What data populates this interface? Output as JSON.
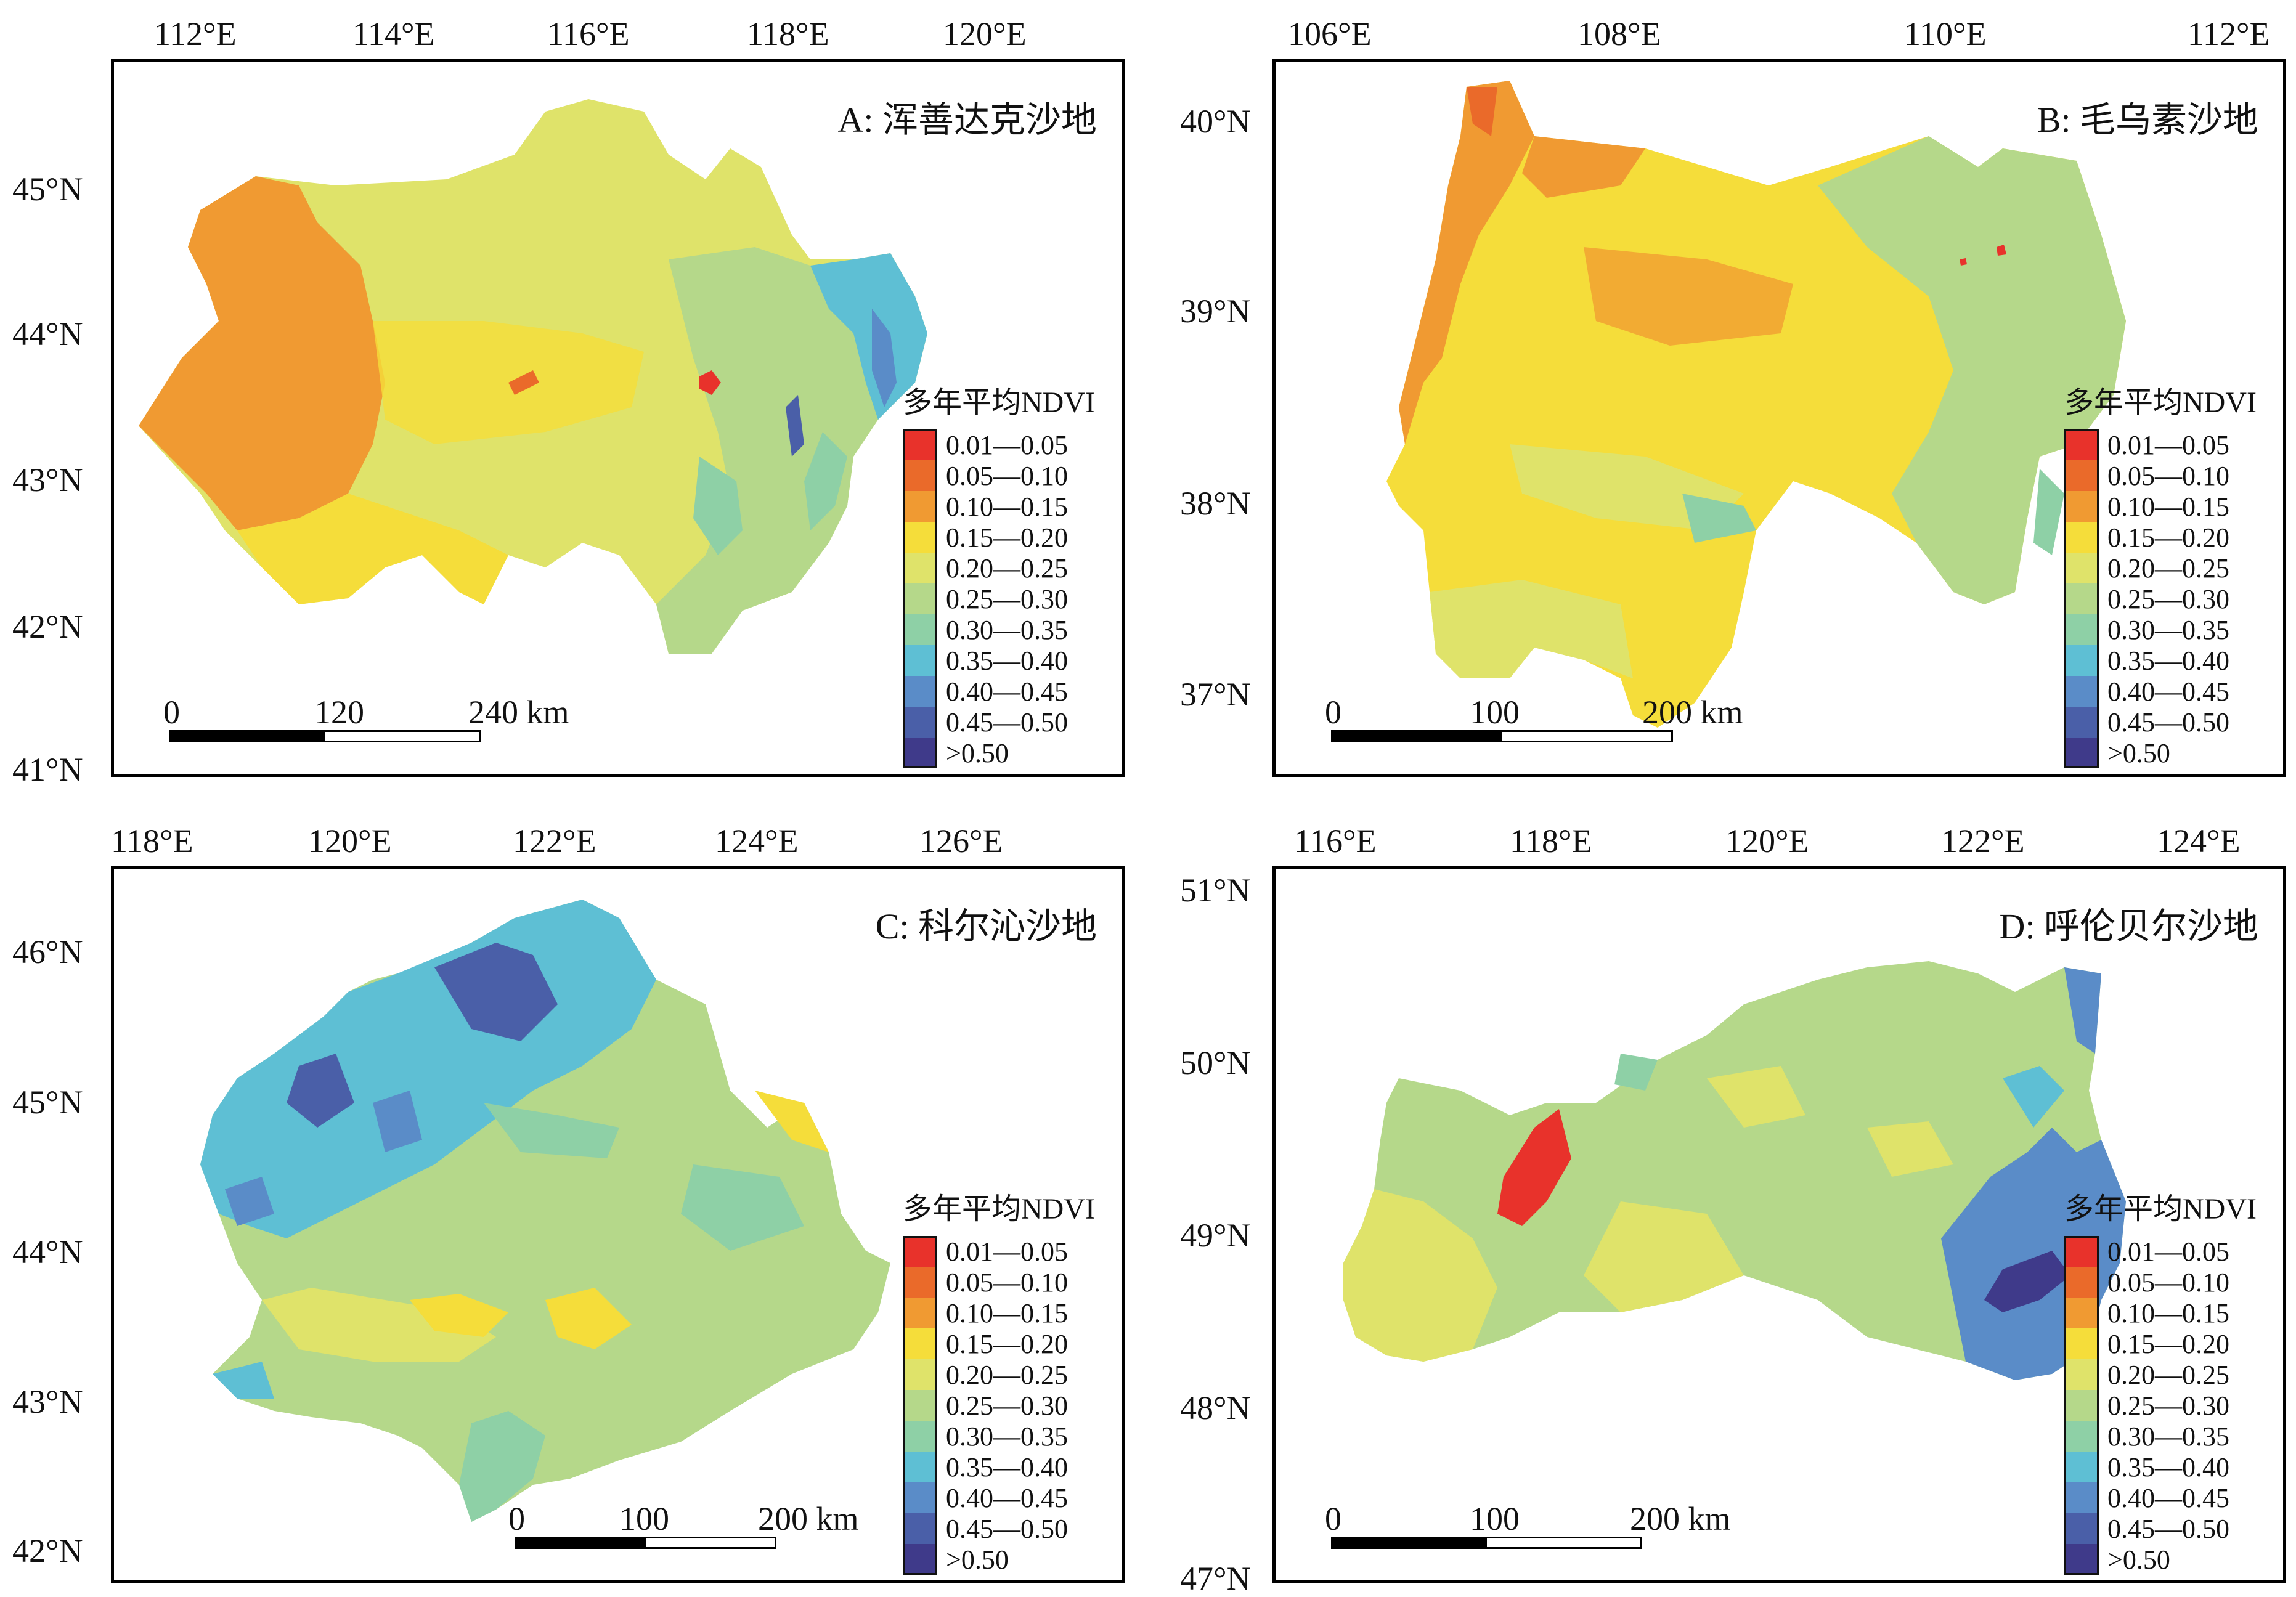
{
  "legend_title": "多年平均NDVI",
  "legend_classes": [
    {
      "label": "0.01—0.05",
      "color": "#e8322b"
    },
    {
      "label": "0.05—0.10",
      "color": "#ea6a2a"
    },
    {
      "label": "0.10—0.15",
      "color": "#f09a32"
    },
    {
      "label": "0.15—0.20",
      "color": "#f5dd3a"
    },
    {
      "label": "0.20—0.25",
      "color": "#dfe36a"
    },
    {
      "label": "0.25—0.30",
      "color": "#b5d88a"
    },
    {
      "label": "0.30—0.35",
      "color": "#8ed0a6"
    },
    {
      "label": "0.35—0.40",
      "color": "#5ebfd4"
    },
    {
      "label": "0.40—0.45",
      "color": "#5a8cc8"
    },
    {
      "label": "0.45—0.50",
      "color": "#4a5fa8"
    },
    {
      "label": ">0.50",
      "color": "#3f3a8a"
    }
  ],
  "panels": {
    "A": {
      "title": "A: 浑善达克沙地",
      "lon_labels": [
        "112°E",
        "114°E",
        "116°E",
        "118°E",
        "120°E"
      ],
      "lat_labels": [
        "45°N",
        "44°N",
        "43°N",
        "42°N",
        "41°N"
      ],
      "scale_labels": [
        "0",
        "120",
        "240 km"
      ]
    },
    "B": {
      "title": "B: 毛乌素沙地",
      "lon_labels": [
        "106°E",
        "108°E",
        "110°E",
        "112°E"
      ],
      "lat_labels": [
        "40°N",
        "39°N",
        "38°N",
        "37°N"
      ],
      "scale_labels": [
        "0",
        "100",
        "200 km"
      ]
    },
    "C": {
      "title": "C: 科尔沁沙地",
      "lon_labels": [
        "118°E",
        "120°E",
        "122°E",
        "124°E",
        "126°E"
      ],
      "lat_labels": [
        "46°N",
        "45°N",
        "44°N",
        "43°N",
        "42°N"
      ],
      "scale_labels": [
        "0",
        "100",
        "200 km"
      ]
    },
    "D": {
      "title": "D: 呼伦贝尔沙地",
      "lon_labels": [
        "116°E",
        "118°E",
        "120°E",
        "122°E",
        "124°E"
      ],
      "lat_labels": [
        "51°N",
        "50°N",
        "49°N",
        "48°N",
        "47°N"
      ],
      "scale_labels": [
        "0",
        "100",
        "200 km"
      ]
    }
  }
}
